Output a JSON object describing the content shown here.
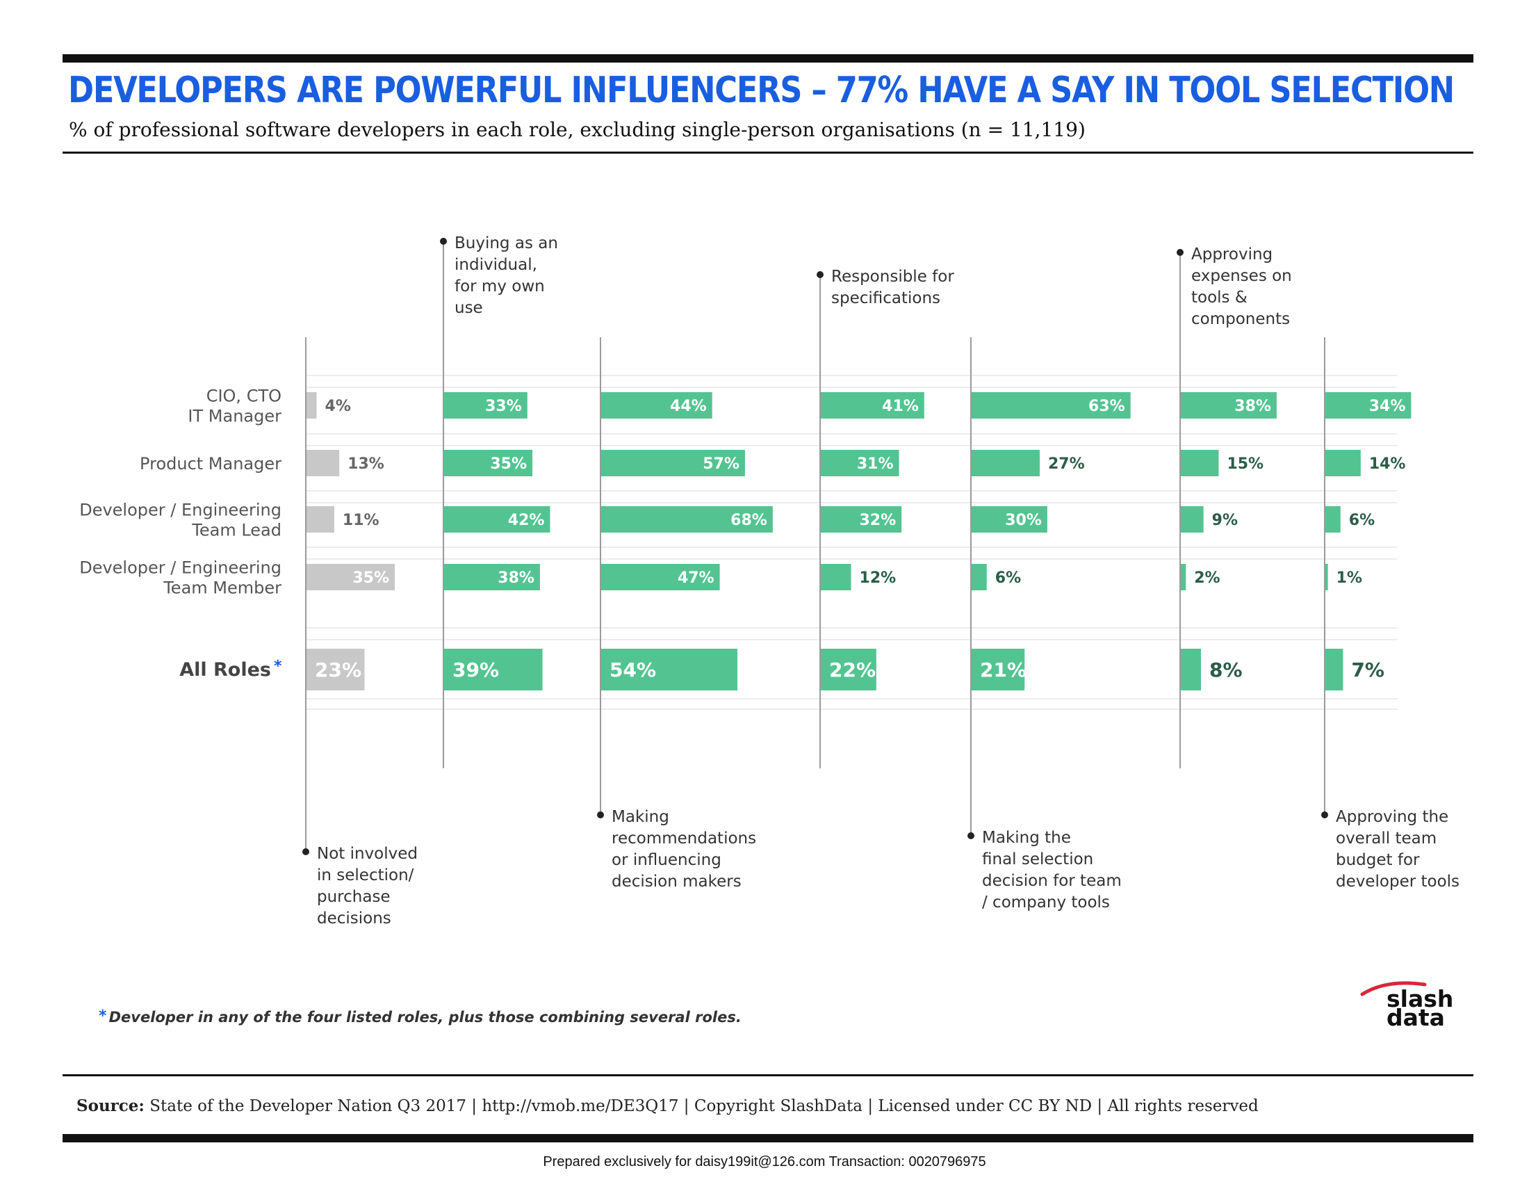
{
  "header": {
    "title": "DEVELOPERS ARE POWERFUL INFLUENCERS – 77% HAVE A SAY IN TOOL SELECTION",
    "subtitle": "% of professional software developers in each role, excluding single-person organisations (n = 11,119)"
  },
  "colors": {
    "title_blue": "#1a5ee0",
    "bar_green": "#53c491",
    "bar_gray": "#c8c8c8",
    "logo_red": "#d8283b"
  },
  "chart_data": {
    "type": "bar",
    "title": "DEVELOPERS ARE POWERFUL INFLUENCERS – 77% HAVE A SAY IN TOOL SELECTION",
    "subtitle": "% of professional software developers in each role, excluding single-person organisations (n = 11,119)",
    "categories": [
      {
        "lines": [
          "CIO, CTO",
          "IT Manager"
        ]
      },
      {
        "lines": [
          "Product Manager"
        ]
      },
      {
        "lines": [
          "Developer / Engineering",
          "Team Lead"
        ]
      },
      {
        "lines": [
          "Developer / Engineering",
          "Team Member"
        ]
      },
      {
        "lines": [
          "All Roles"
        ],
        "star": "*"
      }
    ],
    "series": [
      {
        "label_lines": [
          "Not involved",
          "in selection/",
          "purchase",
          "decisions"
        ],
        "values": [
          4,
          13,
          11,
          35,
          23
        ]
      },
      {
        "label_lines": [
          "Buying as an",
          "individual,",
          "for my own",
          "use"
        ],
        "values": [
          33,
          35,
          42,
          38,
          39
        ]
      },
      {
        "label_lines": [
          "Making",
          "recommendations",
          "or influencing",
          "decision makers"
        ],
        "values": [
          44,
          57,
          68,
          47,
          54
        ]
      },
      {
        "label_lines": [
          "Responsible for",
          "specifications"
        ],
        "values": [
          41,
          31,
          32,
          12,
          22
        ]
      },
      {
        "label_lines": [
          "Making the",
          "final selection",
          "decision for team",
          "/ company tools"
        ],
        "values": [
          63,
          27,
          30,
          6,
          21
        ]
      },
      {
        "label_lines": [
          "Approving",
          "expenses on",
          "tools &",
          "components"
        ],
        "values": [
          38,
          15,
          9,
          2,
          8
        ]
      },
      {
        "label_lines": [
          "Approving the",
          "overall team",
          "budget for",
          "developer tools"
        ],
        "values": [
          34,
          14,
          6,
          1,
          7
        ]
      }
    ],
    "value_suffix": "%",
    "legend_position": "column headers alternating above and below"
  },
  "footnote": {
    "star": "*",
    "text": "Developer in any of the four listed roles, plus those combining several roles."
  },
  "source": {
    "label": "Source:",
    "text": "State of the Developer Nation Q3 2017  |  http://vmob.me/DE3Q17  |  Copyright SlashData  |  Licensed under CC BY ND  |  All rights reserved"
  },
  "logo": {
    "line1": "slash",
    "line2": "data"
  },
  "watermark": "Prepared exclusively for daisy199it@126.com  Transaction: 0020796975"
}
